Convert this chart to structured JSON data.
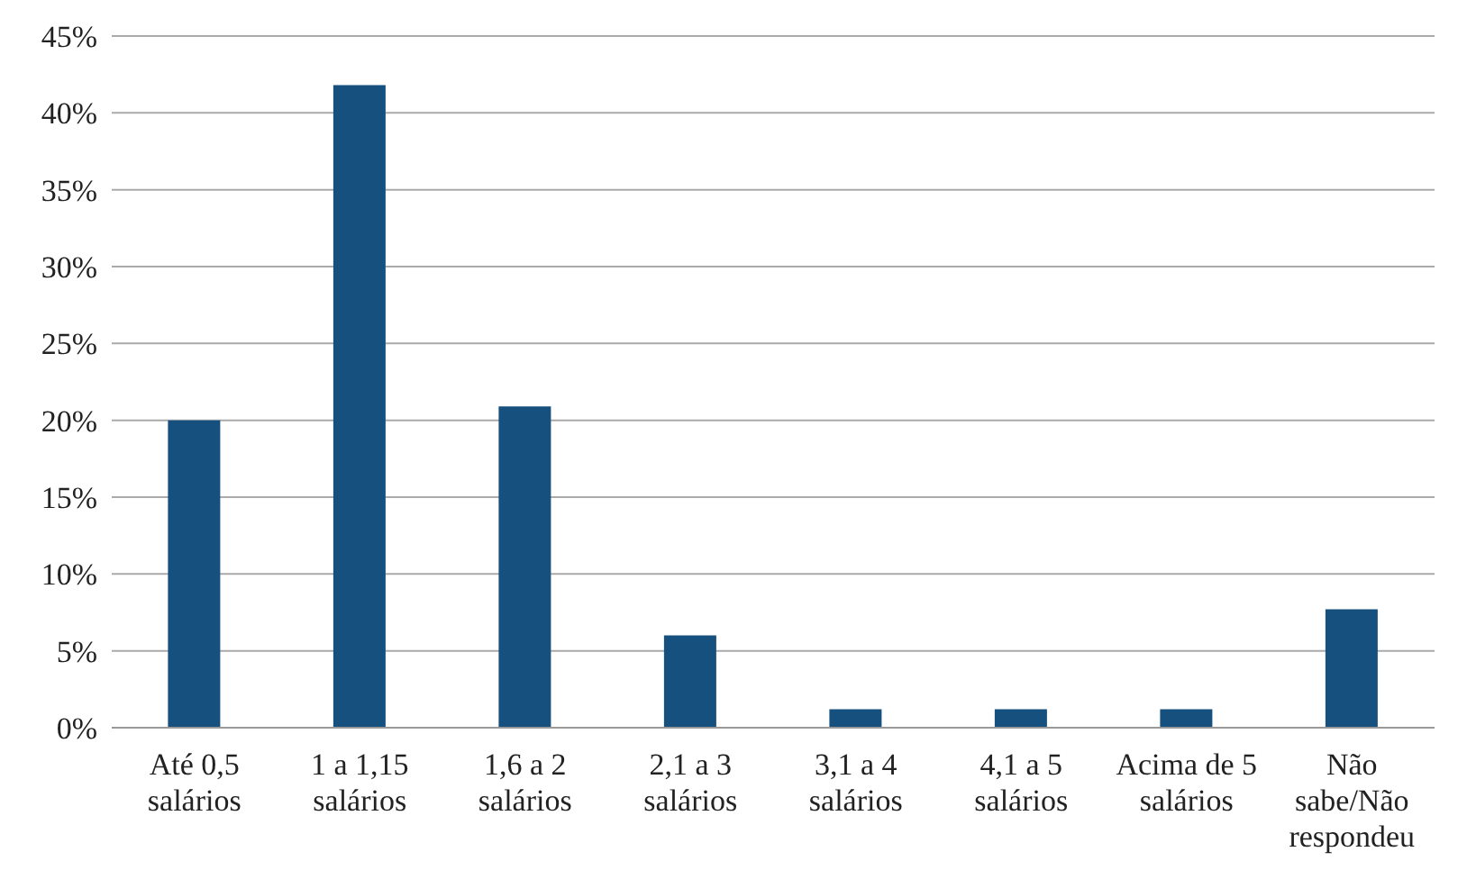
{
  "chart_data": {
    "type": "bar",
    "categories": [
      "Até 0,5 salários",
      "1 a 1,15 salários",
      "1,6 a 2 salários",
      "2,1 a 3 salários",
      "3,1 a 4 salários",
      "4,1 a 5 salários",
      "Acima de 5 salários",
      "Não sabe/Não respondeu"
    ],
    "values": [
      20.0,
      41.8,
      20.9,
      6.0,
      1.2,
      1.2,
      1.2,
      7.7
    ],
    "color": "#16507f",
    "ylim": [
      0,
      45
    ],
    "yticks": [
      {
        "value": 0,
        "label": "0%"
      },
      {
        "value": 5,
        "label": "5%"
      },
      {
        "value": 10,
        "label": "10%"
      },
      {
        "value": 15,
        "label": "15%"
      },
      {
        "value": 20,
        "label": "20%"
      },
      {
        "value": 25,
        "label": "25%"
      },
      {
        "value": 30,
        "label": "30%"
      },
      {
        "value": 35,
        "label": "35%"
      },
      {
        "value": 40,
        "label": "40%"
      },
      {
        "value": 45,
        "label": "45%"
      }
    ],
    "grid": "y"
  }
}
